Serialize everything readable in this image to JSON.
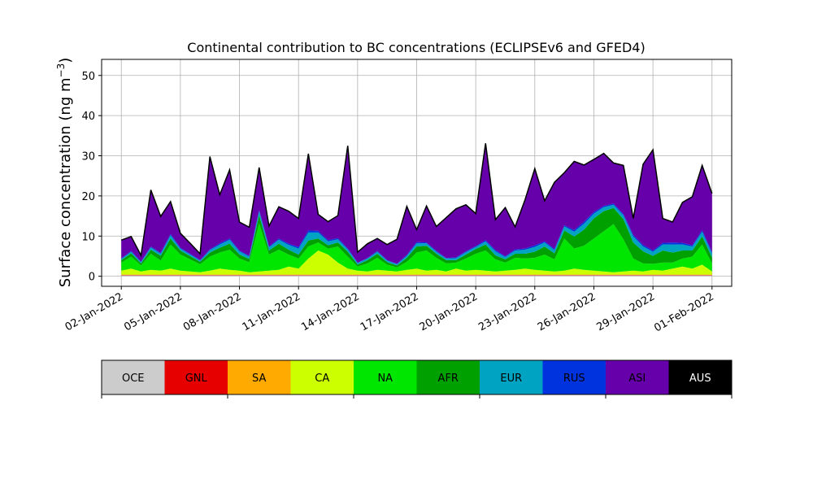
{
  "chart_data": {
    "type": "area",
    "stacked": true,
    "title": "Continental contribution to BC concentrations (ECLIPSEv6 and GFED4)",
    "ylabel": "Surface concentration (ng m$^{-3}$)",
    "ylabel_text": "Surface concentration (ng m",
    "ylabel_sup": "−3",
    "ylabel_close": ")",
    "xlabel": "",
    "ylim": [
      -2.5,
      54
    ],
    "yticks": [
      0,
      10,
      20,
      30,
      40,
      50
    ],
    "xlim": [
      "2022-01-01 00:00",
      "2022-02-02 00:00"
    ],
    "xticks": [
      "02-Jan-2022",
      "05-Jan-2022",
      "08-Jan-2022",
      "11-Jan-2022",
      "14-Jan-2022",
      "17-Jan-2022",
      "20-Jan-2022",
      "23-Jan-2022",
      "26-Jan-2022",
      "29-Jan-2022",
      "01-Feb-2022"
    ],
    "xtick_days": [
      1,
      4,
      7,
      10,
      13,
      16,
      19,
      22,
      25,
      28,
      31
    ],
    "grid": true,
    "x_days": [
      1.0,
      1.5,
      2.0,
      2.5,
      3.0,
      3.5,
      4.0,
      4.5,
      5.0,
      5.5,
      6.0,
      6.5,
      7.0,
      7.5,
      8.0,
      8.5,
      9.0,
      9.5,
      10.0,
      10.5,
      11.0,
      11.5,
      12.0,
      12.5,
      13.0,
      13.5,
      14.0,
      14.5,
      15.0,
      15.5,
      16.0,
      16.5,
      17.0,
      17.5,
      18.0,
      18.5,
      19.0,
      19.5,
      20.0,
      20.5,
      21.0,
      21.5,
      22.0,
      22.5,
      23.0,
      23.5,
      24.0,
      24.5,
      25.0,
      25.5,
      26.0,
      26.5,
      27.0,
      27.5,
      28.0,
      28.5,
      29.0,
      29.5,
      30.0,
      30.5,
      31.0
    ],
    "series": [
      {
        "name": "OCE",
        "color": "#cccccc",
        "values": [
          0.2,
          0.2,
          0.2,
          0.2,
          0.2,
          0.2,
          0.2,
          0.2,
          0.2,
          0.2,
          0.2,
          0.2,
          0.2,
          0.2,
          0.2,
          0.2,
          0.2,
          0.2,
          0.2,
          0.2,
          0.2,
          0.2,
          0.2,
          0.2,
          0.2,
          0.2,
          0.2,
          0.2,
          0.2,
          0.2,
          0.2,
          0.2,
          0.2,
          0.2,
          0.2,
          0.2,
          0.2,
          0.2,
          0.2,
          0.2,
          0.2,
          0.2,
          0.2,
          0.2,
          0.2,
          0.2,
          0.2,
          0.2,
          0.2,
          0.2,
          0.2,
          0.2,
          0.2,
          0.2,
          0.2,
          0.2,
          0.2,
          0.2,
          0.2,
          0.2,
          0.2
        ]
      },
      {
        "name": "GNL",
        "color": "#e60000",
        "values": [
          0.1,
          0.1,
          0.1,
          0.1,
          0.1,
          0.1,
          0.1,
          0.1,
          0.1,
          0.1,
          0.1,
          0.1,
          0.1,
          0.1,
          0.1,
          0.1,
          0.1,
          0.1,
          0.1,
          0.1,
          0.1,
          0.1,
          0.1,
          0.1,
          0.1,
          0.1,
          0.1,
          0.1,
          0.1,
          0.1,
          0.1,
          0.1,
          0.1,
          0.1,
          0.1,
          0.1,
          0.1,
          0.1,
          0.1,
          0.1,
          0.1,
          0.1,
          0.1,
          0.1,
          0.1,
          0.1,
          0.1,
          0.1,
          0.1,
          0.1,
          0.1,
          0.1,
          0.1,
          0.1,
          0.1,
          0.1,
          0.1,
          0.1,
          0.1,
          0.1,
          0.1
        ]
      },
      {
        "name": "SA",
        "color": "#ffaa00",
        "values": [
          0.1,
          0.1,
          0.1,
          0.1,
          0.1,
          0.1,
          0.1,
          0.1,
          0.1,
          0.1,
          0.1,
          0.1,
          0.1,
          0.1,
          0.1,
          0.1,
          0.1,
          0.1,
          0.1,
          0.1,
          0.1,
          0.1,
          0.1,
          0.1,
          0.1,
          0.1,
          0.1,
          0.1,
          0.1,
          0.1,
          0.1,
          0.1,
          0.1,
          0.1,
          0.1,
          0.1,
          0.1,
          0.1,
          0.1,
          0.1,
          0.1,
          0.1,
          0.1,
          0.1,
          0.1,
          0.1,
          0.1,
          0.1,
          0.1,
          0.1,
          0.1,
          0.1,
          0.1,
          0.1,
          0.1,
          0.1,
          0.1,
          0.1,
          0.1,
          0.1,
          0.1
        ]
      },
      {
        "name": "CA",
        "color": "#ccff00",
        "values": [
          1.0,
          1.5,
          0.8,
          1.2,
          1.0,
          1.5,
          1.0,
          0.8,
          0.6,
          1.0,
          1.5,
          1.2,
          1.0,
          0.6,
          0.8,
          1.0,
          1.2,
          2.0,
          1.5,
          4.0,
          6.0,
          5.0,
          3.0,
          1.5,
          1.0,
          0.8,
          1.2,
          1.0,
          0.8,
          1.2,
          1.5,
          1.0,
          1.2,
          0.8,
          1.5,
          1.0,
          1.2,
          1.0,
          0.8,
          1.0,
          1.2,
          1.5,
          1.2,
          1.0,
          0.8,
          1.0,
          1.5,
          1.2,
          1.0,
          0.8,
          0.6,
          0.8,
          1.0,
          0.8,
          1.2,
          1.0,
          1.5,
          2.0,
          1.5,
          2.5,
          0.8
        ]
      },
      {
        "name": "NA",
        "color": "#00e600",
        "values": [
          2.0,
          3.0,
          1.5,
          4.0,
          2.5,
          6.0,
          4.0,
          3.0,
          2.0,
          3.5,
          4.0,
          5.0,
          3.0,
          2.5,
          12.0,
          4.0,
          5.0,
          3.0,
          2.5,
          3.0,
          2.0,
          1.5,
          4.0,
          3.0,
          1.0,
          2.0,
          3.0,
          1.5,
          1.0,
          2.0,
          4.0,
          5.0,
          3.0,
          2.0,
          1.5,
          3.0,
          4.0,
          5.0,
          3.0,
          2.0,
          3.0,
          2.5,
          3.0,
          4.0,
          3.0,
          8.0,
          5.0,
          6.0,
          8.0,
          10.0,
          12.0,
          8.0,
          3.0,
          2.0,
          1.5,
          2.0,
          1.5,
          2.0,
          3.0,
          5.0,
          2.0
        ]
      },
      {
        "name": "AFR",
        "color": "#00a000",
        "values": [
          0.6,
          0.8,
          0.5,
          1.0,
          1.2,
          1.5,
          1.0,
          0.8,
          0.6,
          1.0,
          1.2,
          1.5,
          1.0,
          0.8,
          2.0,
          1.0,
          1.5,
          1.2,
          1.0,
          1.5,
          1.0,
          0.8,
          1.0,
          1.2,
          0.5,
          0.8,
          1.0,
          0.6,
          0.5,
          1.0,
          1.5,
          1.2,
          1.0,
          0.8,
          0.6,
          1.0,
          1.2,
          1.5,
          1.0,
          0.8,
          1.0,
          1.2,
          1.5,
          2.0,
          1.5,
          2.0,
          3.0,
          4.0,
          5.0,
          5.0,
          4.0,
          5.0,
          4.0,
          3.0,
          2.0,
          3.0,
          2.5,
          2.0,
          1.5,
          2.0,
          1.5
        ]
      },
      {
        "name": "EUR",
        "color": "#00a3c2",
        "values": [
          0.3,
          0.4,
          0.3,
          0.6,
          0.5,
          0.8,
          0.5,
          0.4,
          0.3,
          0.6,
          0.8,
          1.0,
          0.8,
          0.6,
          1.0,
          0.8,
          1.0,
          1.2,
          1.5,
          2.0,
          1.5,
          1.0,
          0.8,
          0.6,
          0.4,
          0.4,
          0.5,
          0.4,
          0.3,
          0.5,
          0.8,
          0.6,
          0.5,
          0.4,
          0.5,
          0.6,
          0.5,
          0.8,
          1.0,
          0.6,
          0.8,
          1.0,
          1.2,
          1.0,
          0.8,
          1.0,
          1.2,
          1.5,
          1.2,
          1.0,
          0.8,
          1.0,
          1.5,
          1.2,
          1.0,
          1.5,
          2.0,
          1.5,
          1.0,
          1.2,
          1.0
        ]
      },
      {
        "name": "RUS",
        "color": "#0033dd",
        "values": [
          0.1,
          0.2,
          0.1,
          0.2,
          0.2,
          0.3,
          0.2,
          0.2,
          0.1,
          0.2,
          0.3,
          0.3,
          0.2,
          0.2,
          0.3,
          0.2,
          0.3,
          0.3,
          0.4,
          0.5,
          0.4,
          0.3,
          0.3,
          0.2,
          0.1,
          0.1,
          0.2,
          0.1,
          0.1,
          0.2,
          0.3,
          0.2,
          0.2,
          0.1,
          0.2,
          0.2,
          0.2,
          0.3,
          0.3,
          0.2,
          0.3,
          0.3,
          0.4,
          0.3,
          0.3,
          0.3,
          0.4,
          0.5,
          0.4,
          0.3,
          0.3,
          0.3,
          0.4,
          0.4,
          0.3,
          0.4,
          0.5,
          0.4,
          0.3,
          0.4,
          0.3
        ]
      },
      {
        "name": "ASI",
        "color": "#6600aa",
        "values": [
          4.5,
          3.5,
          1.5,
          14.0,
          9.0,
          8.0,
          3.5,
          2.5,
          1.5,
          23.0,
          12.0,
          17.0,
          7.0,
          7.0,
          10.5,
          5.0,
          7.8,
          8.0,
          7.0,
          19.0,
          4.0,
          4.5,
          5.5,
          25.5,
          2.5,
          3.5,
          3.0,
          3.8,
          6.0,
          12.0,
          3.0,
          9.0,
          6.0,
          10.0,
          12.0,
          11.5,
          8.0,
          24.0,
          7.5,
          12.0,
          5.5,
          12.0,
          19.0,
          10.0,
          16.5,
          13.0,
          17.0,
          14.0,
          13.0,
          13.0,
          10.0,
          12.0,
          4.0,
          20.0,
          25.0,
          6.0,
          5.0,
          10.0,
          12.0,
          16.0,
          14.5
        ]
      },
      {
        "name": "AUS",
        "color": "#000000",
        "values": [
          0.1,
          0.1,
          0.1,
          0.1,
          0.1,
          0.1,
          0.1,
          0.1,
          0.1,
          0.1,
          0.1,
          0.1,
          0.1,
          0.1,
          0.1,
          0.1,
          0.1,
          0.1,
          0.1,
          0.1,
          0.1,
          0.1,
          0.1,
          0.1,
          0.1,
          0.1,
          0.1,
          0.1,
          0.1,
          0.1,
          0.1,
          0.1,
          0.1,
          0.1,
          0.1,
          0.1,
          0.1,
          0.1,
          0.1,
          0.1,
          0.1,
          0.1,
          0.1,
          0.1,
          0.1,
          0.1,
          0.1,
          0.1,
          0.1,
          0.1,
          0.1,
          0.1,
          0.1,
          0.1,
          0.1,
          0.1,
          0.1,
          0.1,
          0.1,
          0.1,
          0.1
        ]
      }
    ],
    "legend": {
      "placement": "bottom",
      "entries": [
        "OCE",
        "GNL",
        "SA",
        "CA",
        "NA",
        "AFR",
        "EUR",
        "RUS",
        "ASI",
        "AUS"
      ],
      "colors": [
        "#cccccc",
        "#e60000",
        "#ffaa00",
        "#ccff00",
        "#00e600",
        "#00a000",
        "#00a3c2",
        "#0033dd",
        "#6600aa",
        "#000000"
      ],
      "text_colors": [
        "#000000",
        "#000000",
        "#000000",
        "#000000",
        "#000000",
        "#000000",
        "#000000",
        "#000000",
        "#000000",
        "#ffffff"
      ]
    }
  }
}
